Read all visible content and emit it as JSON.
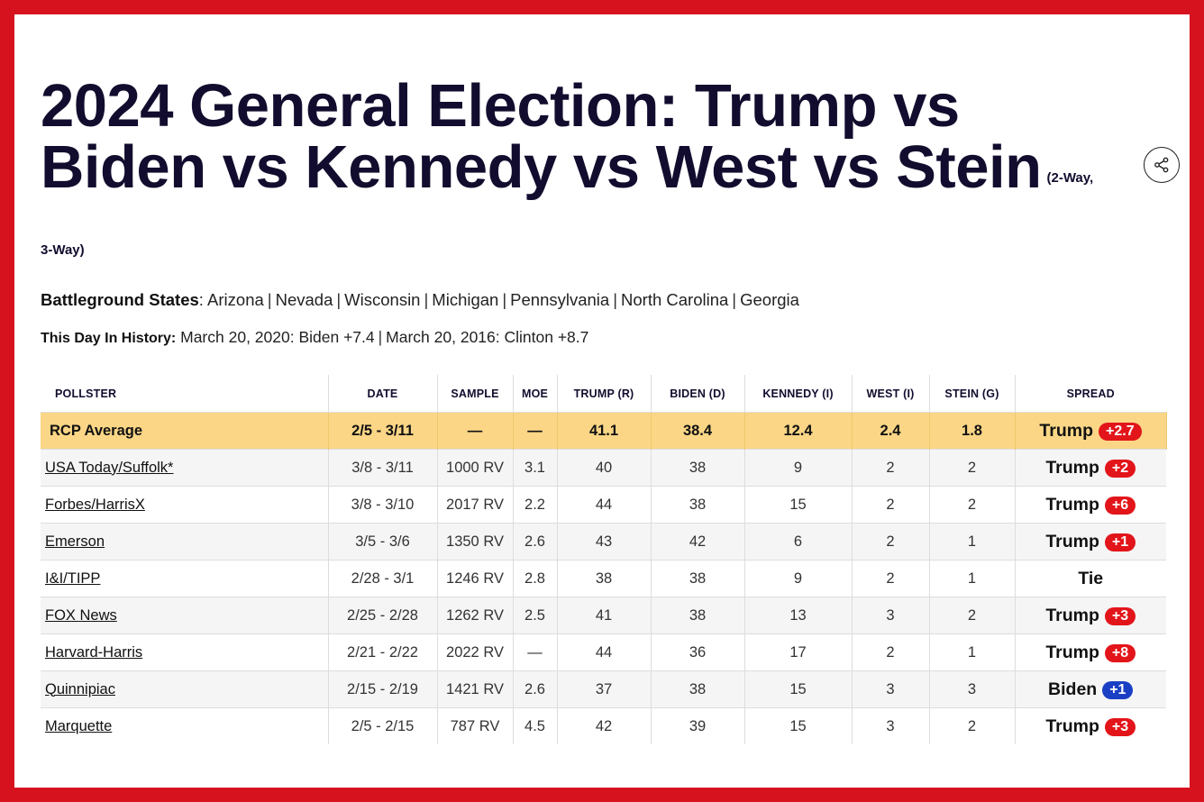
{
  "header": {
    "title": "2024 General Election: Trump vs Biden vs Kennedy vs West vs Stein",
    "subtitle": "(2-Way, 3-Way)"
  },
  "battleground": {
    "label": "Battleground States",
    "states": [
      "Arizona",
      "Nevada",
      "Wisconsin",
      "Michigan",
      "Pennsylvania",
      "North Carolina",
      "Georgia"
    ]
  },
  "history": {
    "label": "This Day In History:",
    "entries": [
      "March 20, 2020: Biden +7.4",
      "March 20, 2016: Clinton +8.7"
    ]
  },
  "table": {
    "columns": [
      "POLLSTER",
      "DATE",
      "SAMPLE",
      "MOE",
      "TRUMP (R)",
      "BIDEN (D)",
      "KENNEDY (I)",
      "WEST (I)",
      "STEIN (G)",
      "SPREAD"
    ],
    "average": {
      "pollster": "RCP Average",
      "date": "2/5 - 3/11",
      "sample": "—",
      "moe": "—",
      "trump": "41.1",
      "biden": "38.4",
      "kennedy": "12.4",
      "west": "2.4",
      "stein": "1.8",
      "spread_winner": "Trump",
      "spread_value": "+2.7",
      "spread_party": "r"
    },
    "rows": [
      {
        "pollster": "USA Today/Suffolk*",
        "date": "3/8 - 3/11",
        "sample": "1000 RV",
        "moe": "3.1",
        "trump": "40",
        "biden": "38",
        "kennedy": "9",
        "west": "2",
        "stein": "2",
        "spread_winner": "Trump",
        "spread_value": "+2",
        "spread_party": "r"
      },
      {
        "pollster": "Forbes/HarrisX",
        "date": "3/8 - 3/10",
        "sample": "2017 RV",
        "moe": "2.2",
        "trump": "44",
        "biden": "38",
        "kennedy": "15",
        "west": "2",
        "stein": "2",
        "spread_winner": "Trump",
        "spread_value": "+6",
        "spread_party": "r"
      },
      {
        "pollster": "Emerson",
        "date": "3/5 - 3/6",
        "sample": "1350 RV",
        "moe": "2.6",
        "trump": "43",
        "biden": "42",
        "kennedy": "6",
        "west": "2",
        "stein": "1",
        "spread_winner": "Trump",
        "spread_value": "+1",
        "spread_party": "r"
      },
      {
        "pollster": "I&I/TIPP",
        "date": "2/28 - 3/1",
        "sample": "1246 RV",
        "moe": "2.8",
        "trump": "38",
        "biden": "38",
        "kennedy": "9",
        "west": "2",
        "stein": "1",
        "spread_winner": "Tie",
        "spread_value": "",
        "spread_party": ""
      },
      {
        "pollster": "FOX News",
        "date": "2/25 - 2/28",
        "sample": "1262 RV",
        "moe": "2.5",
        "trump": "41",
        "biden": "38",
        "kennedy": "13",
        "west": "3",
        "stein": "2",
        "spread_winner": "Trump",
        "spread_value": "+3",
        "spread_party": "r"
      },
      {
        "pollster": "Harvard-Harris",
        "date": "2/21 - 2/22",
        "sample": "2022 RV",
        "moe": "—",
        "trump": "44",
        "biden": "36",
        "kennedy": "17",
        "west": "2",
        "stein": "1",
        "spread_winner": "Trump",
        "spread_value": "+8",
        "spread_party": "r"
      },
      {
        "pollster": "Quinnipiac",
        "date": "2/15 - 2/19",
        "sample": "1421 RV",
        "moe": "2.6",
        "trump": "37",
        "biden": "38",
        "kennedy": "15",
        "west": "3",
        "stein": "3",
        "spread_winner": "Biden",
        "spread_value": "+1",
        "spread_party": "d"
      },
      {
        "pollster": "Marquette",
        "date": "2/5 - 2/15",
        "sample": "787 RV",
        "moe": "4.5",
        "trump": "42",
        "biden": "39",
        "kennedy": "15",
        "west": "3",
        "stein": "2",
        "spread_winner": "Trump",
        "spread_value": "+3",
        "spread_party": "r"
      }
    ]
  },
  "icons": {
    "share": "share-icon"
  },
  "colors": {
    "frame": "#d7121f",
    "average_row": "#fad686",
    "republican": "#e2151a",
    "democrat": "#1b3fc4",
    "title": "#120d2e"
  }
}
